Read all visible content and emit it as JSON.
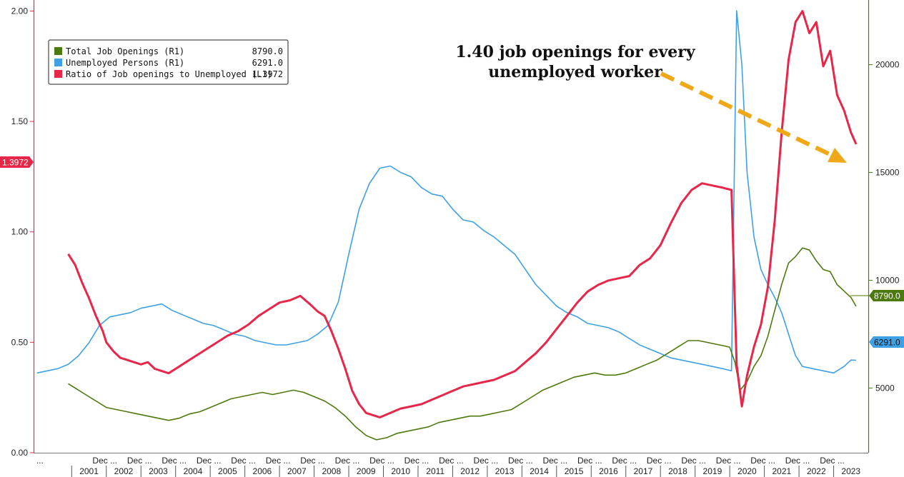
{
  "chart_data": {
    "type": "line",
    "title": "",
    "xlabel": "",
    "ylabel_left": "",
    "ylabel_right": "",
    "ylim_left": [
      0,
      2.05
    ],
    "ylim_right": [
      2000,
      23000
    ],
    "grid": false,
    "legend_position": "top-left",
    "left_ticks": [
      {
        "value": 0.0,
        "label": "0.00"
      },
      {
        "value": 0.5,
        "label": "0.50"
      },
      {
        "value": 1.0,
        "label": "1.00"
      },
      {
        "value": 1.5,
        "label": "1.50"
      },
      {
        "value": 2.0,
        "label": "2.00"
      }
    ],
    "right_ticks": [
      {
        "value": 5000,
        "label": "5000"
      },
      {
        "value": 10000,
        "label": "10000"
      },
      {
        "value": 15000,
        "label": "15000"
      },
      {
        "value": 20000,
        "label": "20000"
      }
    ],
    "year_labels": [
      "2001",
      "2002",
      "2003",
      "2004",
      "2005",
      "2006",
      "2007",
      "2008",
      "2009",
      "2010",
      "2011",
      "2012",
      "2013",
      "2014",
      "2015",
      "2016",
      "2017",
      "2018",
      "2019",
      "2020",
      "2021",
      "2022",
      "2023"
    ],
    "minor_tick_label": "Dec ...",
    "first_tick_label": "...",
    "colors": {
      "openings": "#4d7a0e",
      "unemployed": "#3fa1e4",
      "ratio": "#e8264a",
      "arrow": "#f0a818",
      "axis_right": "#4d7a0e",
      "axis_left": "#e8264a"
    },
    "legend": [
      {
        "label": "Total Job Openings (R1)",
        "value": "8790.0",
        "color": "#4d7a0e"
      },
      {
        "label": "Unemployed Persons (R1)",
        "value": "6291.0",
        "color": "#3fa1e4"
      },
      {
        "label": "Ratio of Job openings to Unemployed (L1)",
        "value": "1.3972",
        "color": "#e8264a"
      }
    ],
    "last_value_tags": {
      "ratio": "1.3972",
      "openings": "8790.0",
      "unemployed": "6291.0"
    },
    "annotation": {
      "line1": "1.40 job openings for every",
      "line2": "unemployed worker"
    },
    "series": [
      {
        "name": "Ratio of Job openings to Unemployed (L1)",
        "axis": "left",
        "color": "#e8264a",
        "points": [
          [
            2000.9,
            0.9
          ],
          [
            2001.1,
            0.85
          ],
          [
            2001.3,
            0.77
          ],
          [
            2001.5,
            0.7
          ],
          [
            2001.7,
            0.62
          ],
          [
            2001.9,
            0.55
          ],
          [
            2002.0,
            0.5
          ],
          [
            2002.2,
            0.46
          ],
          [
            2002.4,
            0.43
          ],
          [
            2002.6,
            0.42
          ],
          [
            2002.8,
            0.41
          ],
          [
            2003.0,
            0.4
          ],
          [
            2003.2,
            0.41
          ],
          [
            2003.4,
            0.38
          ],
          [
            2003.6,
            0.37
          ],
          [
            2003.8,
            0.36
          ],
          [
            2004.0,
            0.38
          ],
          [
            2004.3,
            0.41
          ],
          [
            2004.6,
            0.44
          ],
          [
            2004.9,
            0.47
          ],
          [
            2005.2,
            0.5
          ],
          [
            2005.5,
            0.53
          ],
          [
            2005.8,
            0.55
          ],
          [
            2006.1,
            0.58
          ],
          [
            2006.4,
            0.62
          ],
          [
            2006.7,
            0.65
          ],
          [
            2007.0,
            0.68
          ],
          [
            2007.3,
            0.69
          ],
          [
            2007.6,
            0.71
          ],
          [
            2007.9,
            0.67
          ],
          [
            2008.1,
            0.64
          ],
          [
            2008.3,
            0.62
          ],
          [
            2008.5,
            0.55
          ],
          [
            2008.7,
            0.47
          ],
          [
            2008.9,
            0.38
          ],
          [
            2009.1,
            0.28
          ],
          [
            2009.3,
            0.22
          ],
          [
            2009.5,
            0.18
          ],
          [
            2009.7,
            0.17
          ],
          [
            2009.9,
            0.16
          ],
          [
            2010.2,
            0.18
          ],
          [
            2010.5,
            0.2
          ],
          [
            2010.8,
            0.21
          ],
          [
            2011.1,
            0.22
          ],
          [
            2011.4,
            0.24
          ],
          [
            2011.7,
            0.26
          ],
          [
            2012.0,
            0.28
          ],
          [
            2012.3,
            0.3
          ],
          [
            2012.6,
            0.31
          ],
          [
            2012.9,
            0.32
          ],
          [
            2013.2,
            0.33
          ],
          [
            2013.5,
            0.35
          ],
          [
            2013.8,
            0.37
          ],
          [
            2014.1,
            0.41
          ],
          [
            2014.4,
            0.45
          ],
          [
            2014.7,
            0.5
          ],
          [
            2015.0,
            0.56
          ],
          [
            2015.3,
            0.62
          ],
          [
            2015.6,
            0.68
          ],
          [
            2015.9,
            0.73
          ],
          [
            2016.2,
            0.76
          ],
          [
            2016.5,
            0.78
          ],
          [
            2016.8,
            0.79
          ],
          [
            2017.1,
            0.8
          ],
          [
            2017.4,
            0.85
          ],
          [
            2017.7,
            0.88
          ],
          [
            2018.0,
            0.94
          ],
          [
            2018.3,
            1.04
          ],
          [
            2018.6,
            1.13
          ],
          [
            2018.9,
            1.19
          ],
          [
            2019.2,
            1.22
          ],
          [
            2019.5,
            1.21
          ],
          [
            2019.8,
            1.2
          ],
          [
            2020.05,
            1.19
          ],
          [
            2020.2,
            0.4
          ],
          [
            2020.35,
            0.21
          ],
          [
            2020.5,
            0.35
          ],
          [
            2020.7,
            0.48
          ],
          [
            2020.9,
            0.58
          ],
          [
            2021.1,
            0.75
          ],
          [
            2021.3,
            1.05
          ],
          [
            2021.5,
            1.45
          ],
          [
            2021.7,
            1.78
          ],
          [
            2021.9,
            1.95
          ],
          [
            2022.1,
            2.0
          ],
          [
            2022.3,
            1.9
          ],
          [
            2022.5,
            1.95
          ],
          [
            2022.7,
            1.75
          ],
          [
            2022.9,
            1.82
          ],
          [
            2023.1,
            1.62
          ],
          [
            2023.3,
            1.55
          ],
          [
            2023.5,
            1.45
          ],
          [
            2023.65,
            1.3972
          ]
        ]
      },
      {
        "name": "Unemployed Persons (R1)",
        "axis": "right",
        "color": "#3fa1e4",
        "points": [
          [
            2000.0,
            5700
          ],
          [
            2000.3,
            5800
          ],
          [
            2000.6,
            5900
          ],
          [
            2000.9,
            6100
          ],
          [
            2001.2,
            6500
          ],
          [
            2001.5,
            7100
          ],
          [
            2001.8,
            7900
          ],
          [
            2002.1,
            8300
          ],
          [
            2002.4,
            8400
          ],
          [
            2002.7,
            8500
          ],
          [
            2003.0,
            8700
          ],
          [
            2003.3,
            8800
          ],
          [
            2003.6,
            8900
          ],
          [
            2003.9,
            8600
          ],
          [
            2004.2,
            8400
          ],
          [
            2004.5,
            8200
          ],
          [
            2004.8,
            8000
          ],
          [
            2005.1,
            7900
          ],
          [
            2005.4,
            7700
          ],
          [
            2005.7,
            7500
          ],
          [
            2006.0,
            7400
          ],
          [
            2006.3,
            7200
          ],
          [
            2006.6,
            7100
          ],
          [
            2006.9,
            7000
          ],
          [
            2007.2,
            7000
          ],
          [
            2007.5,
            7100
          ],
          [
            2007.8,
            7200
          ],
          [
            2008.1,
            7500
          ],
          [
            2008.4,
            7900
          ],
          [
            2008.7,
            9000
          ],
          [
            2009.0,
            11200
          ],
          [
            2009.3,
            13300
          ],
          [
            2009.6,
            14500
          ],
          [
            2009.9,
            15200
          ],
          [
            2010.2,
            15300
          ],
          [
            2010.5,
            15000
          ],
          [
            2010.8,
            14800
          ],
          [
            2011.1,
            14300
          ],
          [
            2011.4,
            14000
          ],
          [
            2011.7,
            13900
          ],
          [
            2012.0,
            13300
          ],
          [
            2012.3,
            12800
          ],
          [
            2012.6,
            12700
          ],
          [
            2012.9,
            12300
          ],
          [
            2013.2,
            12000
          ],
          [
            2013.5,
            11600
          ],
          [
            2013.8,
            11200
          ],
          [
            2014.1,
            10500
          ],
          [
            2014.4,
            9800
          ],
          [
            2014.7,
            9300
          ],
          [
            2015.0,
            8800
          ],
          [
            2015.3,
            8500
          ],
          [
            2015.6,
            8300
          ],
          [
            2015.9,
            8000
          ],
          [
            2016.2,
            7900
          ],
          [
            2016.5,
            7800
          ],
          [
            2016.8,
            7600
          ],
          [
            2017.1,
            7300
          ],
          [
            2017.4,
            7000
          ],
          [
            2017.7,
            6800
          ],
          [
            2018.0,
            6600
          ],
          [
            2018.3,
            6400
          ],
          [
            2018.6,
            6300
          ],
          [
            2018.9,
            6200
          ],
          [
            2019.2,
            6100
          ],
          [
            2019.5,
            6000
          ],
          [
            2019.8,
            5900
          ],
          [
            2020.05,
            5800
          ],
          [
            2020.2,
            22500
          ],
          [
            2020.35,
            20000
          ],
          [
            2020.5,
            15000
          ],
          [
            2020.7,
            12000
          ],
          [
            2020.9,
            10500
          ],
          [
            2021.1,
            9800
          ],
          [
            2021.3,
            9200
          ],
          [
            2021.5,
            8500
          ],
          [
            2021.7,
            7500
          ],
          [
            2021.9,
            6500
          ],
          [
            2022.1,
            6000
          ],
          [
            2022.4,
            5900
          ],
          [
            2022.7,
            5800
          ],
          [
            2023.0,
            5700
          ],
          [
            2023.3,
            6000
          ],
          [
            2023.5,
            6300
          ],
          [
            2023.65,
            6291
          ]
        ]
      },
      {
        "name": "Total Job Openings (R1)",
        "axis": "right",
        "color": "#4d7a0e",
        "points": [
          [
            2000.9,
            5200
          ],
          [
            2001.1,
            5000
          ],
          [
            2001.4,
            4700
          ],
          [
            2001.7,
            4400
          ],
          [
            2002.0,
            4100
          ],
          [
            2002.3,
            4000
          ],
          [
            2002.6,
            3900
          ],
          [
            2002.9,
            3800
          ],
          [
            2003.2,
            3700
          ],
          [
            2003.5,
            3600
          ],
          [
            2003.8,
            3500
          ],
          [
            2004.1,
            3600
          ],
          [
            2004.4,
            3800
          ],
          [
            2004.7,
            3900
          ],
          [
            2005.0,
            4100
          ],
          [
            2005.3,
            4300
          ],
          [
            2005.6,
            4500
          ],
          [
            2005.9,
            4600
          ],
          [
            2006.2,
            4700
          ],
          [
            2006.5,
            4800
          ],
          [
            2006.8,
            4700
          ],
          [
            2007.1,
            4800
          ],
          [
            2007.4,
            4900
          ],
          [
            2007.7,
            4800
          ],
          [
            2008.0,
            4600
          ],
          [
            2008.3,
            4400
          ],
          [
            2008.6,
            4100
          ],
          [
            2008.9,
            3700
          ],
          [
            2009.2,
            3200
          ],
          [
            2009.5,
            2800
          ],
          [
            2009.8,
            2600
          ],
          [
            2010.1,
            2700
          ],
          [
            2010.4,
            2900
          ],
          [
            2010.7,
            3000
          ],
          [
            2011.0,
            3100
          ],
          [
            2011.3,
            3200
          ],
          [
            2011.6,
            3400
          ],
          [
            2011.9,
            3500
          ],
          [
            2012.2,
            3600
          ],
          [
            2012.5,
            3700
          ],
          [
            2012.8,
            3700
          ],
          [
            2013.1,
            3800
          ],
          [
            2013.4,
            3900
          ],
          [
            2013.7,
            4000
          ],
          [
            2014.0,
            4300
          ],
          [
            2014.3,
            4600
          ],
          [
            2014.6,
            4900
          ],
          [
            2014.9,
            5100
          ],
          [
            2015.2,
            5300
          ],
          [
            2015.5,
            5500
          ],
          [
            2015.8,
            5600
          ],
          [
            2016.1,
            5700
          ],
          [
            2016.4,
            5600
          ],
          [
            2016.7,
            5600
          ],
          [
            2017.0,
            5700
          ],
          [
            2017.3,
            5900
          ],
          [
            2017.6,
            6100
          ],
          [
            2017.9,
            6300
          ],
          [
            2018.2,
            6600
          ],
          [
            2018.5,
            6900
          ],
          [
            2018.8,
            7200
          ],
          [
            2019.1,
            7200
          ],
          [
            2019.4,
            7100
          ],
          [
            2019.7,
            7000
          ],
          [
            2020.0,
            6900
          ],
          [
            2020.15,
            6200
          ],
          [
            2020.3,
            4900
          ],
          [
            2020.5,
            5300
          ],
          [
            2020.7,
            6000
          ],
          [
            2020.9,
            6500
          ],
          [
            2021.1,
            7400
          ],
          [
            2021.3,
            8600
          ],
          [
            2021.5,
            9800
          ],
          [
            2021.7,
            10800
          ],
          [
            2021.9,
            11100
          ],
          [
            2022.1,
            11500
          ],
          [
            2022.3,
            11400
          ],
          [
            2022.5,
            10900
          ],
          [
            2022.7,
            10500
          ],
          [
            2022.9,
            10400
          ],
          [
            2023.1,
            9800
          ],
          [
            2023.3,
            9500
          ],
          [
            2023.5,
            9200
          ],
          [
            2023.65,
            8790
          ]
        ]
      }
    ]
  }
}
